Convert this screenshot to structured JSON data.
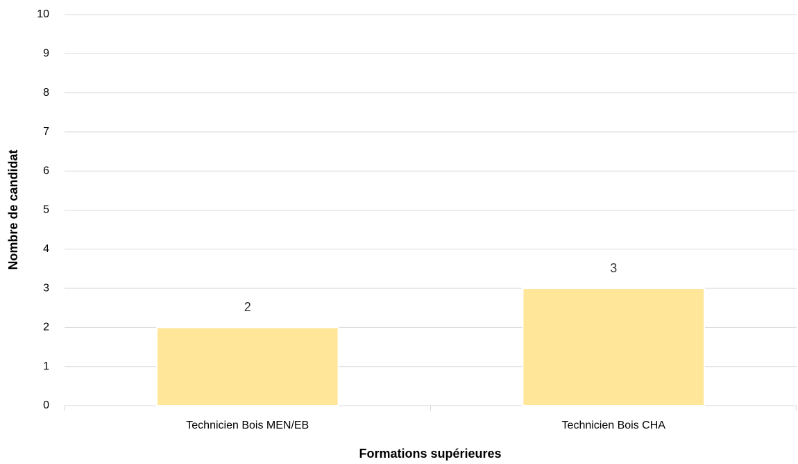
{
  "chart_data": {
    "type": "bar",
    "x_label": "Formations supérieures",
    "y_label": "Nombre de candidat",
    "categories": [
      "Technicien Bois MEN/EB",
      "Technicien Bois CHA"
    ],
    "values": [
      2,
      3
    ],
    "color": "#ffe699",
    "ylim": [
      0,
      10
    ],
    "yticks": [
      0,
      1,
      2,
      3,
      4,
      5,
      6,
      7,
      8,
      9,
      10
    ],
    "grid": true,
    "data_labels": true
  }
}
